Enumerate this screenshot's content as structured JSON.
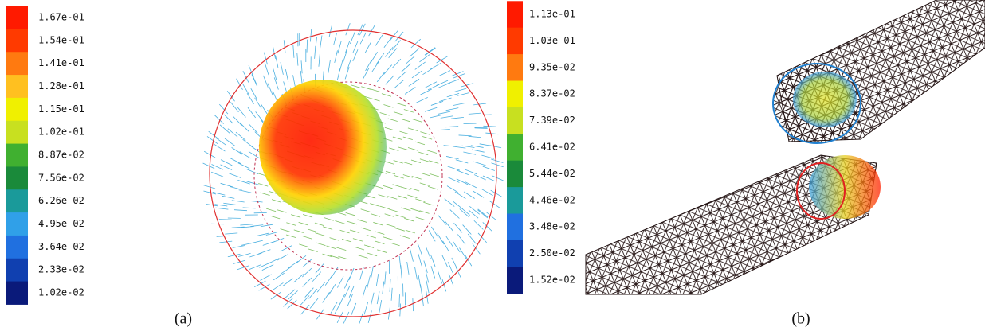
{
  "panel_a": {
    "colorbar": {
      "labels": [
        "1.67e-01",
        "1.54e-01",
        "1.41e-01",
        "1.28e-01",
        "1.15e-01",
        "1.02e-01",
        "8.87e-02",
        "7.56e-02",
        "6.26e-02",
        "4.95e-02",
        "3.64e-02",
        "2.33e-02",
        "1.02e-02"
      ]
    },
    "caption": "(a)"
  },
  "panel_b": {
    "colorbar": {
      "labels": [
        "1.13e-01",
        "1.03e-01",
        "9.35e-02",
        "8.37e-02",
        "7.39e-02",
        "6.41e-02",
        "5.44e-02",
        "4.46e-02",
        "3.48e-02",
        "2.50e-02",
        "1.52e-02"
      ]
    },
    "caption": "(b)"
  }
}
